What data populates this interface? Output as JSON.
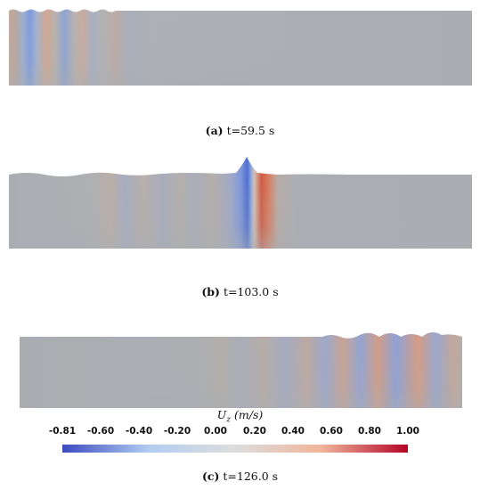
{
  "panels": [
    {
      "label": "(a)",
      "time": "t=59.5 s"
    },
    {
      "label": "(b)",
      "time": "t=103.0 s"
    },
    {
      "label": "(c)",
      "time": "t=126.0 s"
    }
  ],
  "colorbar": {
    "title_symbol": "U",
    "title_sub": "z",
    "title_unit": " (m/s)",
    "ticks": [
      "-0.81",
      "-0.60",
      "-0.40",
      "-0.20",
      "0.00",
      "0.20",
      "0.40",
      "0.60",
      "0.80",
      "1.00"
    ],
    "min": -0.81,
    "max": 1.0,
    "colors": [
      "#3b4cc0",
      "#b2cdf1",
      "#dddddd",
      "#f0b59a",
      "#b40426"
    ]
  }
}
